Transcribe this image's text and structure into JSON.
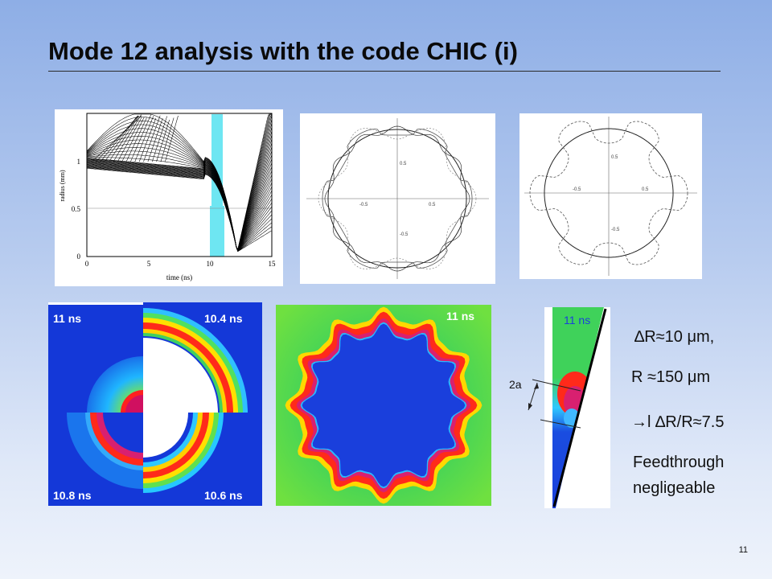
{
  "slide": {
    "title": "Mode 12 analysis with the code CHIC (i)",
    "page_number": "11"
  },
  "radius_plot": {
    "ylabel": "radius (mm)",
    "xlabel": "time (ns)",
    "x_ticks": [
      "0",
      "5",
      "10",
      "15"
    ],
    "y_ticks": [
      "0",
      "0.5",
      "1"
    ],
    "highlight_color": "#6ee6f2"
  },
  "polar_plots": {
    "tick_labels": [
      "-0.5",
      "0.5",
      "0.5",
      "-0.5"
    ]
  },
  "simulation": {
    "quad_labels": {
      "top_left": "11 ns",
      "top_right": "10.4 ns",
      "bottom_left": "10.8 ns",
      "bottom_right": "10.6 ns"
    },
    "full_label": "11 ns",
    "zoom_label": "11 ns",
    "zoom_annotation": "2a"
  },
  "notes": {
    "line1": "∆R≈10 μm,",
    "line2": "R ≈150 μm",
    "line3": "→l ∆R/R≈7.5",
    "line4": "Feedthrough",
    "line5": "negligeable"
  }
}
